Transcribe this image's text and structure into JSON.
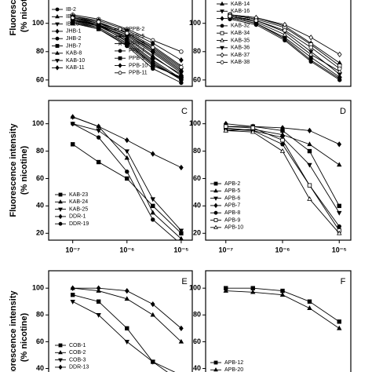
{
  "chart_data": [
    {
      "type": "line",
      "color": "#000",
      "xlog": true,
      "xlim": [
        3.6e-08,
        1.6e-05
      ],
      "ylim": [
        55.5,
        122
      ],
      "yticks": [
        60,
        80,
        100
      ],
      "y_label": [
        "Fluorescence",
        "(% nicotine)"
      ],
      "x": [
        1e-07,
        3e-07,
        1e-06,
        3e-06,
        1e-05
      ],
      "series": [
        {
          "name": "IB-2",
          "marker": "circle",
          "values": [
            104,
            100,
            92,
            80,
            66
          ]
        },
        {
          "name": "IB-4",
          "marker": "triangle",
          "values": [
            103,
            99,
            90,
            77,
            63
          ]
        },
        {
          "name": "IB-10",
          "marker": "triangle-down",
          "values": [
            102,
            98,
            88,
            74,
            61
          ]
        },
        {
          "name": "JHB-1",
          "marker": "diamond",
          "values": [
            105,
            101,
            93,
            82,
            68
          ]
        },
        {
          "name": "JHB-2",
          "marker": "circle",
          "values": [
            101,
            97,
            86,
            72,
            60
          ]
        },
        {
          "name": "JHB-7",
          "marker": "square",
          "values": [
            100,
            96,
            85,
            70,
            62
          ]
        },
        {
          "name": "KAB-8",
          "marker": "triangle",
          "values": [
            104,
            99,
            89,
            76,
            64
          ]
        },
        {
          "name": "KAB-10",
          "marker": "triangle-down",
          "values": [
            103,
            98,
            91,
            79,
            65
          ]
        },
        {
          "name": "KAB-11",
          "marker": "diamond",
          "values": [
            102,
            99,
            87,
            73,
            60
          ]
        },
        {
          "name": "PPB-2",
          "marker": "circle-open",
          "values": [
            106,
            103,
            96,
            88,
            80
          ]
        },
        {
          "name": "PPB-5",
          "marker": "cross",
          "values": [
            104,
            100,
            94,
            84,
            70
          ]
        },
        {
          "name": "PPB-6",
          "marker": "cross",
          "values": [
            103,
            99,
            92,
            81,
            67
          ]
        },
        {
          "name": "PPB-7",
          "marker": "circle",
          "values": [
            101,
            96,
            84,
            68,
            58
          ]
        },
        {
          "name": "PPB-9",
          "marker": "square",
          "values": [
            102,
            97,
            86,
            71,
            61
          ]
        },
        {
          "name": "PPB-10",
          "marker": "diamond",
          "values": [
            105,
            102,
            95,
            86,
            74
          ]
        },
        {
          "name": "PPB-11",
          "marker": "circle-open",
          "values": [
            104,
            101,
            93,
            83,
            69
          ]
        }
      ]
    },
    {
      "type": "line",
      "color": "#000",
      "xlog": true,
      "xlim": [
        3.6e-08,
        1.6e-05
      ],
      "ylim": [
        55.5,
        122
      ],
      "yticks": [
        60,
        80,
        100
      ],
      "x": [
        1e-07,
        3e-07,
        1e-06,
        3e-06,
        1e-05
      ],
      "series": [
        {
          "name": "KAB-14",
          "marker": "triangle",
          "values": [
            106,
            104,
            98,
            86,
            72
          ]
        },
        {
          "name": "KAB-16",
          "marker": "triangle-down",
          "values": [
            105,
            102,
            94,
            80,
            64
          ]
        },
        {
          "name": "KAB-28",
          "marker": "diamond",
          "values": [
            104,
            100,
            90,
            76,
            62
          ]
        },
        {
          "name": "KAB-32",
          "marker": "circle",
          "values": [
            103,
            99,
            88,
            73,
            60
          ]
        },
        {
          "name": "KAB-34",
          "marker": "square-open",
          "values": [
            106,
            103,
            97,
            85,
            70
          ]
        },
        {
          "name": "KAB-35",
          "marker": "triangle-open",
          "values": [
            105,
            101,
            92,
            78,
            66
          ]
        },
        {
          "name": "KAB-36",
          "marker": "triangle-down",
          "values": [
            104,
            100,
            89,
            74,
            61
          ]
        },
        {
          "name": "KAB-37",
          "marker": "diamond-open",
          "values": [
            106,
            104,
            99,
            90,
            78
          ]
        },
        {
          "name": "KAB-38",
          "marker": "circle-open",
          "values": [
            105,
            102,
            95,
            83,
            68
          ]
        }
      ]
    },
    {
      "type": "line",
      "color": "#000",
      "label": "C",
      "xlog": true,
      "xlim": [
        3.6e-08,
        1.6e-05
      ],
      "ylim": [
        15,
        117
      ],
      "yticks": [
        20,
        40,
        60,
        80,
        100
      ],
      "xticks": [
        {
          "value": 1e-07,
          "label": "10⁻⁷"
        },
        {
          "value": 1e-06,
          "label": "10⁻⁶"
        },
        {
          "value": 1e-05,
          "label": "10⁻⁵"
        }
      ],
      "y_label": [
        "Fluorescence intensity",
        "(% nicotine)"
      ],
      "x": [
        1e-07,
        3e-07,
        1e-06,
        3e-06,
        1e-05
      ],
      "series": [
        {
          "name": "KAB-23",
          "marker": "square",
          "values": [
            85,
            72,
            60,
            40,
            20
          ]
        },
        {
          "name": "KAB-24",
          "marker": "triangle",
          "values": [
            105,
            98,
            75,
            35,
            16
          ]
        },
        {
          "name": "KAB-25",
          "marker": "triangle-down",
          "values": [
            100,
            95,
            80,
            45,
            22
          ]
        },
        {
          "name": "DDR-1",
          "marker": "diamond",
          "values": [
            105,
            98,
            88,
            78,
            68
          ]
        },
        {
          "name": "DDR-19",
          "marker": "circle",
          "values": [
            100,
            90,
            65,
            30,
            12
          ]
        }
      ]
    },
    {
      "type": "line",
      "color": "#000",
      "label": "D",
      "xlog": true,
      "xlim": [
        4.4e-08,
        1.6e-05
      ],
      "ylim": [
        15,
        117
      ],
      "yticks": [
        20,
        40,
        60,
        80,
        100
      ],
      "xticks": [
        {
          "value": 1e-07,
          "label": "10⁻⁷"
        },
        {
          "value": 1e-06,
          "label": "10⁻⁶"
        },
        {
          "value": 1e-05,
          "label": "10⁻⁵"
        }
      ],
      "x": [
        1e-07,
        3e-07,
        1e-06,
        3e-06,
        1e-05
      ],
      "series": [
        {
          "name": "APB-2",
          "marker": "square",
          "values": [
            98,
            98,
            95,
            80,
            40
          ]
        },
        {
          "name": "APB-5",
          "marker": "triangle",
          "values": [
            95,
            96,
            92,
            85,
            70
          ]
        },
        {
          "name": "APB-6",
          "marker": "triangle-down",
          "values": [
            97,
            95,
            90,
            70,
            35
          ]
        },
        {
          "name": "APB-7",
          "marker": "diamond",
          "values": [
            100,
            98,
            97,
            95,
            85
          ]
        },
        {
          "name": "APB-8",
          "marker": "circle",
          "values": [
            96,
            95,
            85,
            55,
            25
          ]
        },
        {
          "name": "APB-9",
          "marker": "square-open",
          "values": [
            98,
            97,
            88,
            55,
            22
          ]
        },
        {
          "name": "APB-10",
          "marker": "triangle-open",
          "values": [
            95,
            94,
            80,
            45,
            20
          ]
        }
      ]
    },
    {
      "type": "line",
      "color": "#000",
      "label": "E",
      "xlog": true,
      "xlim": [
        3.6e-08,
        1.6e-05
      ],
      "ylim": [
        28,
        113
      ],
      "yticks": [
        40,
        60,
        80,
        100
      ],
      "y_label": [
        "Fluorescence intensity",
        "(% nicotine)"
      ],
      "x": [
        1e-07,
        3e-07,
        1e-06,
        3e-06,
        1e-05
      ],
      "series": [
        {
          "name": "COB-1",
          "marker": "square",
          "values": [
            95,
            90,
            70,
            45,
            30
          ]
        },
        {
          "name": "COB-2",
          "marker": "triangle",
          "values": [
            100,
            98,
            92,
            80,
            60
          ]
        },
        {
          "name": "COB-3",
          "marker": "triangle-down",
          "values": [
            90,
            80,
            60,
            45,
            35
          ]
        },
        {
          "name": "DDR-13",
          "marker": "diamond",
          "values": [
            100,
            100,
            98,
            88,
            70
          ]
        }
      ]
    },
    {
      "type": "line",
      "color": "#000",
      "label": "F",
      "xlog": true,
      "xlim": [
        4.4e-08,
        1.6e-05
      ],
      "ylim": [
        28,
        113
      ],
      "yticks": [
        40,
        60,
        80,
        100
      ],
      "x": [
        1e-07,
        3e-07,
        1e-06,
        3e-06,
        1e-05
      ],
      "series": [
        {
          "name": "APB-12",
          "marker": "square",
          "values": [
            100,
            100,
            98,
            90,
            75
          ]
        },
        {
          "name": "APB-20",
          "marker": "triangle",
          "values": [
            98,
            97,
            95,
            85,
            70
          ]
        }
      ]
    }
  ]
}
